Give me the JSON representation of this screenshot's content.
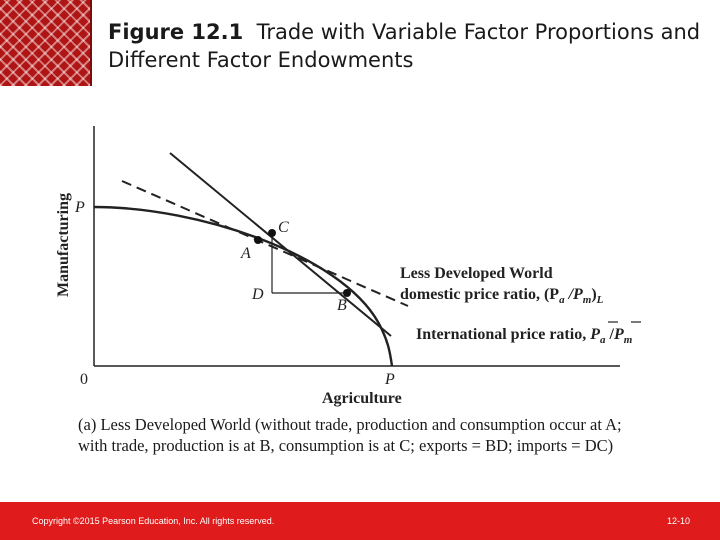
{
  "slide": {
    "title_figure": "Figure 12.1",
    "title_text": "Trade with Variable Factor Proportions and Different Factor Endowments",
    "caption_line1": "(a) Less Developed World (without trade, production and consumption occur at A;",
    "caption_line2": "with trade, production is at B, consumption is at C; exports = BD; imports = DC)",
    "footer_copyright": "Copyright ©2015 Pearson Education, Inc. All rights reserved.",
    "footer_page": "12-10"
  },
  "diagram": {
    "y_axis_label": "Manufacturing",
    "x_axis_label": "Agriculture",
    "origin_label": "0",
    "y_intercept_label": "P",
    "x_intercept_label": "P",
    "point_a": "A",
    "point_b": "B",
    "point_c": "C",
    "point_d": "D",
    "domestic_label_line1": "Less Developed World",
    "domestic_label_line2": "domestic price ratio, (P",
    "domestic_sub_a": "a",
    "domestic_mid": " /P",
    "domestic_sub_m": "m",
    "domestic_close": ")",
    "domestic_sub_l": "L",
    "international_label": "International price ratio, ",
    "intl_p1": "P",
    "intl_sub_a": "a",
    "intl_slash": " /",
    "intl_p2": "P",
    "intl_sub_m": "m"
  },
  "colors": {
    "footer": "#e01b1b",
    "logo": "#b01515",
    "lines": "#222222"
  }
}
